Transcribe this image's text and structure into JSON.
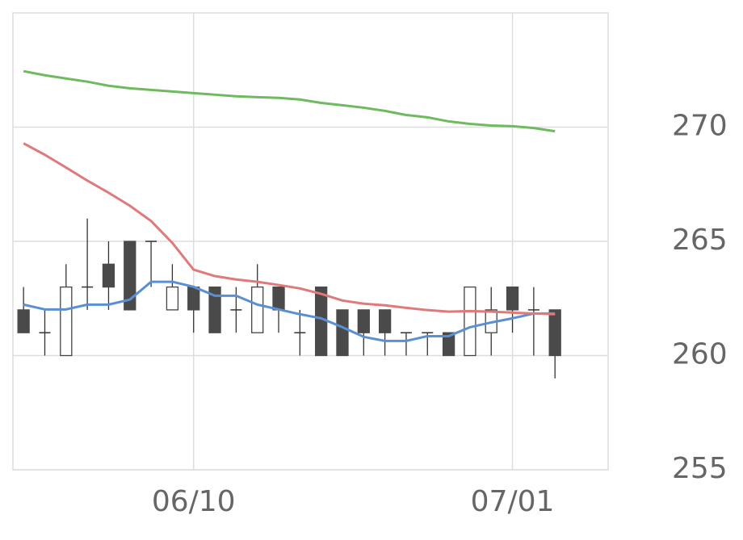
{
  "chart_data": {
    "type": "candlestick",
    "categories": [
      null,
      null,
      null,
      null,
      null,
      null,
      null,
      null,
      "06/10",
      null,
      null,
      null,
      null,
      null,
      null,
      null,
      null,
      null,
      null,
      null,
      null,
      null,
      null,
      "07/01",
      null,
      null,
      null,
      null
    ],
    "open": [
      262,
      261,
      260,
      263,
      264,
      265,
      265,
      262,
      263,
      263,
      262,
      261,
      263,
      261,
      263,
      262,
      262,
      262,
      261,
      261,
      261,
      260,
      261,
      263,
      262,
      262,
      null,
      null
    ],
    "high": [
      263,
      262,
      264,
      266,
      265,
      265,
      265,
      264,
      263,
      263,
      263,
      264,
      263,
      262,
      263,
      262,
      262,
      262,
      261,
      261,
      261,
      263,
      263,
      263,
      263,
      262,
      null,
      null
    ],
    "low": [
      261,
      260,
      260,
      262,
      262,
      262,
      263,
      262,
      261,
      261,
      261,
      261,
      261,
      260,
      260,
      260,
      260,
      260,
      260,
      260,
      260,
      260,
      260,
      261,
      260,
      259,
      null,
      null
    ],
    "close": [
      261,
      261,
      263,
      263,
      263,
      262,
      265,
      263,
      262,
      261,
      262,
      263,
      262,
      261,
      260,
      260,
      261,
      261,
      261,
      261,
      260,
      263,
      262,
      262,
      262,
      260,
      null,
      null
    ],
    "up_color": "#ffffff",
    "down_color": "#4a4a4a",
    "series": [
      {
        "color": "#5b8fd4",
        "values": [
          262.23,
          262.02,
          262.02,
          262.23,
          262.23,
          262.45,
          263.23,
          263.23,
          263.01,
          262.62,
          262.62,
          262.23,
          262.02,
          261.81,
          261.63,
          261.24,
          260.82,
          260.64,
          260.64,
          260.85,
          260.85,
          261.24,
          261.45,
          261.63,
          261.84,
          261.84,
          null,
          null
        ]
      },
      {
        "color": "#e07a7a",
        "values": [
          269.29,
          268.79,
          268.23,
          267.66,
          267.13,
          266.56,
          265.89,
          264.93,
          263.76,
          263.48,
          263.33,
          263.23,
          263.09,
          262.94,
          262.7,
          262.41,
          262.27,
          262.2,
          262.09,
          261.99,
          261.92,
          261.95,
          261.92,
          261.88,
          261.84,
          261.81,
          null,
          null
        ]
      },
      {
        "color": "#6dbb5e",
        "values": [
          272.45,
          272.27,
          272.13,
          271.99,
          271.81,
          271.7,
          271.63,
          271.56,
          271.49,
          271.42,
          271.35,
          271.31,
          271.28,
          271.21,
          271.06,
          270.96,
          270.85,
          270.71,
          270.53,
          270.43,
          270.25,
          270.14,
          270.07,
          270.04,
          269.96,
          269.82,
          null,
          null
        ]
      }
    ],
    "ylim": [
      255,
      275
    ],
    "yticks": [
      255,
      260,
      265,
      270
    ],
    "grid": true
  }
}
